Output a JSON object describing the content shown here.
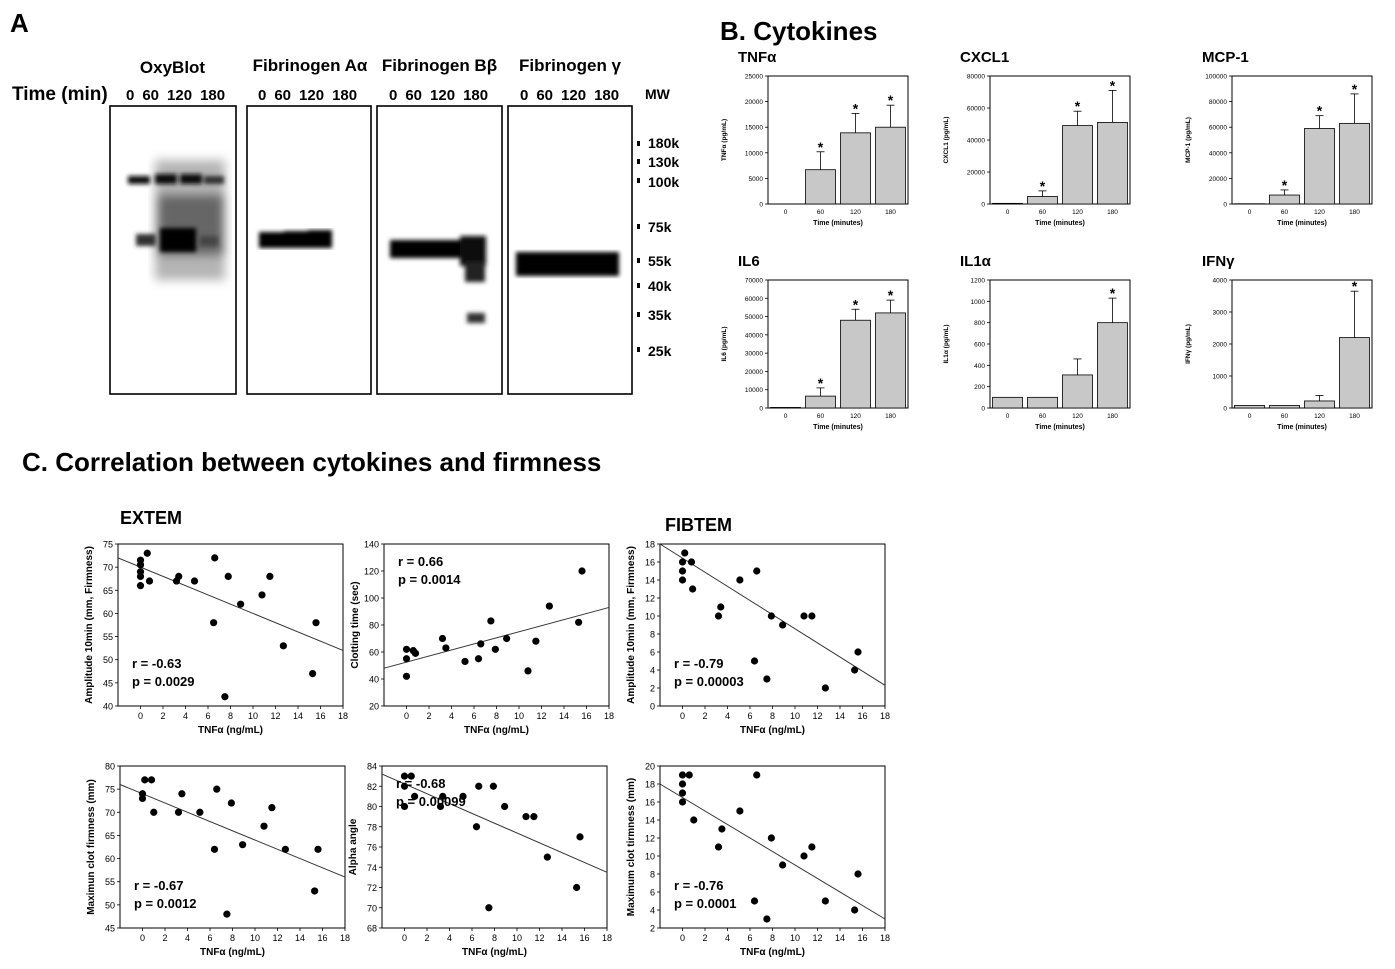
{
  "panelA": {
    "letter": "A",
    "time_label": "Time (min)",
    "mw_label": "MW",
    "blots": [
      {
        "title": "OxyBlot",
        "lanes": [
          "0",
          "60",
          "120",
          "180"
        ]
      },
      {
        "title": "Fibrinogen Aα",
        "lanes": [
          "0",
          "60",
          "120",
          "180"
        ]
      },
      {
        "title": "Fibrinogen Bβ",
        "lanes": [
          "0",
          "60",
          "120",
          "180"
        ]
      },
      {
        "title": "Fibrinogen γ",
        "lanes": [
          "0",
          "60",
          "120",
          "180"
        ]
      }
    ],
    "markers": [
      "180k",
      "130k",
      "100k",
      "75k",
      "55k",
      "40k",
      "35k",
      "25k"
    ]
  },
  "panelB": {
    "title": "B. Cytokines"
  },
  "panelC": {
    "title": "C. Correlation between cytokines and firmness",
    "extem_label": "EXTEM",
    "fibtem_label": "FIBTEM"
  },
  "chart_data": [
    {
      "type": "bar",
      "title": "TNFα",
      "xlabel": "Time (minutes)",
      "ylabel": "TNFα (pg/mL)",
      "categories": [
        "0",
        "60",
        "120",
        "180"
      ],
      "values": [
        0,
        6700,
        13900,
        15000
      ],
      "errors": [
        0,
        3500,
        3800,
        4300
      ],
      "sig": [
        false,
        true,
        true,
        true
      ],
      "ylim": [
        0,
        25000
      ],
      "yticks": [
        "0",
        "5000",
        "10000",
        "15000",
        "20000",
        "25000"
      ]
    },
    {
      "type": "bar",
      "title": "CXCL1",
      "xlabel": "Time (minutes)",
      "ylabel": "CXCL1 (pg/mL)",
      "categories": [
        "0",
        "60",
        "120",
        "180"
      ],
      "values": [
        400,
        4700,
        49000,
        51000
      ],
      "errors": [
        0,
        3500,
        9000,
        20000
      ],
      "sig": [
        false,
        true,
        true,
        true
      ],
      "ylim": [
        0,
        80000
      ],
      "yticks": [
        "0",
        "20000",
        "40000",
        "60000",
        "80000"
      ]
    },
    {
      "type": "bar",
      "title": "MCP-1",
      "xlabel": "Time (minutes)",
      "ylabel": "MCP-1 (pg/mL)",
      "categories": [
        "0",
        "60",
        "120",
        "180"
      ],
      "values": [
        200,
        7000,
        59000,
        63000
      ],
      "errors": [
        0,
        4000,
        10000,
        23000
      ],
      "sig": [
        false,
        true,
        true,
        true
      ],
      "ylim": [
        0,
        100000
      ],
      "yticks": [
        "0",
        "20000",
        "40000",
        "60000",
        "80000",
        "100000"
      ]
    },
    {
      "type": "bar",
      "title": "IL6",
      "xlabel": "Time (minutes)",
      "ylabel": "IL6 (pg/mL)",
      "categories": [
        "0",
        "60",
        "120",
        "180"
      ],
      "values": [
        300,
        6500,
        48000,
        52000
      ],
      "errors": [
        0,
        4500,
        6000,
        7000
      ],
      "sig": [
        false,
        true,
        true,
        true
      ],
      "ylim": [
        0,
        70000
      ],
      "yticks": [
        "0",
        "10000",
        "20000",
        "30000",
        "40000",
        "50000",
        "60000",
        "70000"
      ]
    },
    {
      "type": "bar",
      "title": "IL1α",
      "xlabel": "Time (minutes)",
      "ylabel": "IL1α (pg/mL)",
      "categories": [
        "0",
        "60",
        "120",
        "180"
      ],
      "values": [
        100,
        100,
        310,
        800
      ],
      "errors": [
        0,
        0,
        150,
        230
      ],
      "sig": [
        false,
        false,
        false,
        true
      ],
      "ylim": [
        0,
        1200
      ],
      "yticks": [
        "0",
        "200",
        "400",
        "600",
        "800",
        "1000",
        "1200"
      ]
    },
    {
      "type": "bar",
      "title": "IFNγ",
      "xlabel": "Time (minutes)",
      "ylabel": "IFNγ (pg/mL)",
      "categories": [
        "0",
        "60",
        "120",
        "180"
      ],
      "values": [
        80,
        80,
        220,
        2200
      ],
      "errors": [
        0,
        0,
        170,
        1450
      ],
      "sig": [
        false,
        false,
        false,
        true
      ],
      "ylim": [
        0,
        4000
      ],
      "yticks": [
        "0",
        "1000",
        "2000",
        "3000",
        "4000"
      ]
    },
    {
      "type": "scatter",
      "title": "",
      "xlabel": "TNFα (ng/mL)",
      "ylabel": "Amplitude 10min (mm, Firmness)",
      "xlim": [
        -2,
        18
      ],
      "ylim": [
        40,
        75
      ],
      "xticks": [
        0,
        2,
        4,
        6,
        8,
        10,
        12,
        14,
        16,
        18
      ],
      "yticks": [
        40,
        45,
        50,
        55,
        60,
        65,
        70,
        75
      ],
      "x": [
        0,
        0,
        0,
        0,
        0,
        0.6,
        0.8,
        3.2,
        3.4,
        4.8,
        6.5,
        6.6,
        7.5,
        7.8,
        8.9,
        10.8,
        11.5,
        12.7,
        15.3,
        15.6
      ],
      "y": [
        66,
        68,
        69,
        70.5,
        71.5,
        73,
        67,
        67,
        68,
        67,
        58,
        72,
        42,
        68,
        62,
        64,
        68,
        53,
        47,
        58
      ],
      "fit": [
        [
          -2,
          72
        ],
        [
          18,
          52
        ]
      ],
      "annotation": [
        "r = -0.63",
        "p = 0.0029"
      ]
    },
    {
      "type": "scatter",
      "title": "",
      "xlabel": "TNFα (ng/mL)",
      "ylabel": "Clotting time (sec)",
      "xlim": [
        -2,
        18
      ],
      "ylim": [
        20,
        140
      ],
      "xticks": [
        0,
        2,
        4,
        6,
        8,
        10,
        12,
        14,
        16,
        18
      ],
      "yticks": [
        20,
        40,
        60,
        80,
        100,
        120,
        140
      ],
      "x": [
        0,
        0,
        0,
        0.6,
        0.8,
        3.2,
        3.5,
        5.2,
        6.4,
        6.6,
        7.5,
        7.9,
        8.9,
        10.8,
        11.5,
        12.7,
        15.3,
        15.6
      ],
      "y": [
        42,
        55,
        62,
        61,
        59,
        70,
        63,
        53,
        55,
        66,
        83,
        62,
        70,
        46,
        68,
        94,
        82,
        120
      ],
      "fit": [
        [
          -2,
          48
        ],
        [
          18,
          93
        ]
      ],
      "annotation": [
        "r = 0.66",
        "p = 0.0014"
      ]
    },
    {
      "type": "scatter",
      "title": "",
      "xlabel": "TNFα (ng/mL)",
      "ylabel": "Amplitude 10min (mm, Firmness)",
      "xlim": [
        -2,
        18
      ],
      "ylim": [
        0,
        18
      ],
      "xticks": [
        0,
        2,
        4,
        6,
        8,
        10,
        12,
        14,
        16,
        18
      ],
      "yticks": [
        0,
        2,
        4,
        6,
        8,
        10,
        12,
        14,
        16,
        18
      ],
      "x": [
        0,
        0,
        0,
        0.2,
        0.8,
        0.9,
        3.2,
        3.4,
        5.1,
        6.4,
        6.6,
        7.5,
        7.9,
        8.9,
        10.8,
        11.5,
        12.7,
        15.3,
        15.6
      ],
      "y": [
        14,
        15,
        16,
        17,
        16,
        13,
        10,
        11,
        14,
        5,
        15,
        3,
        10,
        9,
        10,
        10,
        2,
        4,
        6
      ],
      "fit": [
        [
          -2,
          18
        ],
        [
          18,
          2.3
        ]
      ],
      "annotation": [
        "r = -0.79",
        "p = 0.00003"
      ]
    },
    {
      "type": "scatter",
      "title": "",
      "xlabel": "TNFα (ng/mL)",
      "ylabel": "Maximun clot firmness (mm)",
      "xlim": [
        -2,
        18
      ],
      "ylim": [
        45,
        80
      ],
      "xticks": [
        0,
        2,
        4,
        6,
        8,
        10,
        12,
        14,
        16,
        18
      ],
      "yticks": [
        45,
        50,
        55,
        60,
        65,
        70,
        75,
        80
      ],
      "x": [
        0,
        0,
        0.2,
        0.8,
        1,
        3.2,
        3.5,
        5.1,
        6.4,
        6.6,
        7.5,
        7.9,
        8.9,
        10.8,
        11.5,
        12.7,
        15.3,
        15.6
      ],
      "y": [
        73,
        74,
        77,
        77,
        70,
        70,
        74,
        70,
        62,
        75,
        48,
        72,
        63,
        67,
        71,
        62,
        53,
        62
      ],
      "fit": [
        [
          -2,
          76
        ],
        [
          18,
          56
        ]
      ],
      "annotation": [
        "r = -0.67",
        "p = 0.0012"
      ]
    },
    {
      "type": "scatter",
      "title": "",
      "xlabel": "TNFα (ng/mL)",
      "ylabel": "Alpha angle",
      "xlim": [
        -2,
        18
      ],
      "ylim": [
        68,
        84
      ],
      "xticks": [
        0,
        2,
        4,
        6,
        8,
        10,
        12,
        14,
        16,
        18
      ],
      "yticks": [
        68,
        70,
        72,
        74,
        76,
        78,
        80,
        82,
        84
      ],
      "x": [
        0,
        0,
        0,
        0.6,
        0.9,
        3.2,
        3.4,
        5.2,
        6.4,
        6.6,
        7.5,
        7.9,
        8.9,
        10.8,
        11.5,
        12.7,
        15.3,
        15.6
      ],
      "y": [
        80,
        82,
        83,
        83,
        81,
        80,
        81,
        81,
        78,
        82,
        70,
        82,
        80,
        79,
        79,
        75,
        72,
        77
      ],
      "fit": [
        [
          -2,
          83.2
        ],
        [
          18,
          73.5
        ]
      ],
      "annotation": [
        "r = -0.68",
        "p = 0.00099"
      ]
    },
    {
      "type": "scatter",
      "title": "",
      "xlabel": "TNFα (ng/mL)",
      "ylabel": "Maximum clot tirmness (mm)",
      "xlim": [
        -2,
        18
      ],
      "ylim": [
        2,
        20
      ],
      "xticks": [
        0,
        2,
        4,
        6,
        8,
        10,
        12,
        14,
        16,
        18
      ],
      "yticks": [
        2,
        4,
        6,
        8,
        10,
        12,
        14,
        16,
        18,
        20
      ],
      "x": [
        0,
        0,
        0,
        0,
        0.6,
        1,
        3.2,
        3.5,
        5.1,
        6.4,
        6.6,
        7.5,
        7.9,
        8.9,
        10.8,
        11.5,
        12.7,
        15.3,
        15.6
      ],
      "y": [
        16,
        17,
        18,
        19,
        19,
        14,
        11,
        13,
        15,
        5,
        19,
        3,
        12,
        9,
        10,
        11,
        5,
        4,
        8
      ],
      "fit": [
        [
          -2,
          18
        ],
        [
          18,
          3
        ]
      ],
      "annotation": [
        "r = -0.76",
        "p = 0.0001"
      ]
    }
  ]
}
